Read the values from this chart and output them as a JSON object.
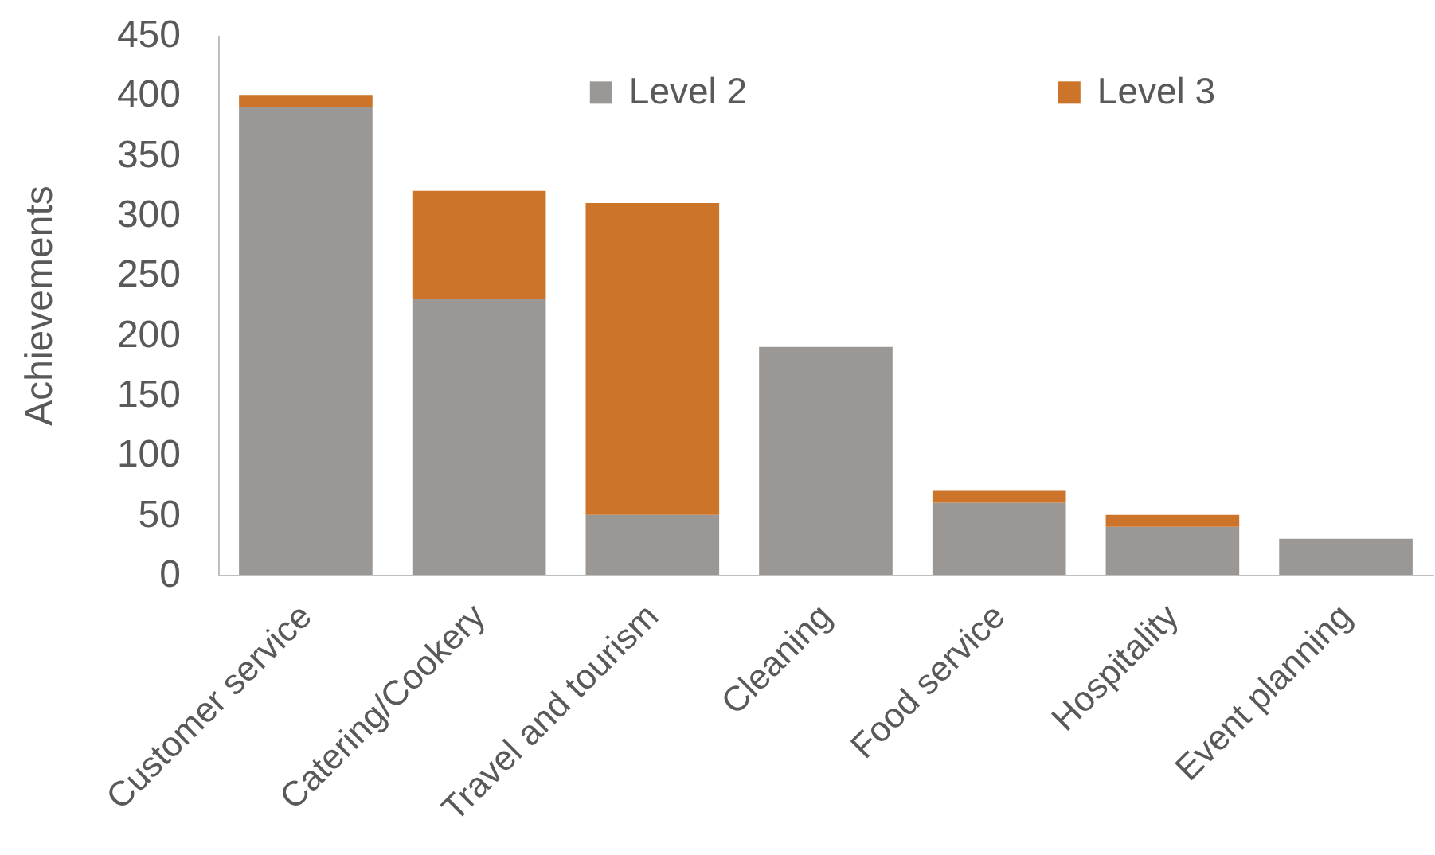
{
  "chart_data": {
    "type": "bar",
    "stacked": true,
    "ylabel": "Achievements",
    "categories": [
      "Customer service",
      "Catering/Cookery",
      "Travel and tourism",
      "Cleaning",
      "Food service",
      "Hospitality",
      "Event planning"
    ],
    "series": [
      {
        "name": "Level 2",
        "color": "#9b9794",
        "values": [
          390,
          230,
          50,
          190,
          60,
          40,
          30
        ]
      },
      {
        "name": "Level 3",
        "color": "#cc7429",
        "values": [
          10,
          90,
          260,
          null,
          10,
          10,
          null
        ]
      }
    ],
    "ylim": [
      0,
      450
    ],
    "yticks": [
      0,
      50,
      100,
      150,
      200,
      250,
      300,
      350,
      400,
      450
    ],
    "grid": false,
    "legend": "top"
  }
}
